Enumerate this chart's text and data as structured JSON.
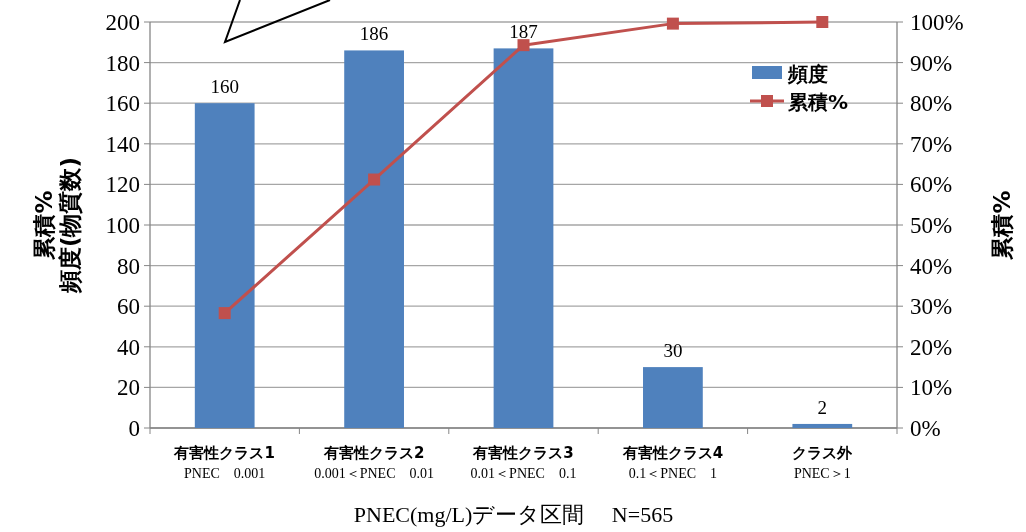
{
  "chart_data": {
    "type": "bar",
    "categories": [
      "有害性クラス1\nPNEC　0.001",
      "有害性クラス2\n0.001＜PNEC　0.01",
      "有害性クラス3\n0.01＜PNEC　0.1",
      "有害性クラス4\n0.1＜PNEC　1",
      "クラス外\nPNEC＞1"
    ],
    "series": [
      {
        "name": "頻度",
        "color": "#4f81bd",
        "values": [
          160,
          186,
          187,
          30,
          2
        ],
        "value_labels": [
          "160",
          "186",
          "187",
          "30",
          "2"
        ]
      },
      {
        "name": "累積%",
        "type": "line",
        "axis": "y2",
        "color": "#c0504d",
        "marker": "square",
        "values": [
          28.3,
          61.2,
          94.3,
          99.6,
          100
        ]
      }
    ],
    "ylabel": "累積%\n頻度(物質数)",
    "y2label": "累積%",
    "xlabel": "PNEC(mg/L)データ区間　 N=565",
    "ylim": [
      0,
      200
    ],
    "yticks": [
      0,
      20,
      40,
      60,
      80,
      100,
      120,
      140,
      160,
      180,
      200
    ],
    "y2lim": [
      0,
      100
    ],
    "y2ticks": [
      {
        "value": 0,
        "label": "0%"
      },
      {
        "value": 10,
        "label": "10%"
      },
      {
        "value": 20,
        "label": "20%"
      },
      {
        "value": 30,
        "label": "30%"
      },
      {
        "value": 40,
        "label": "40%"
      },
      {
        "value": 50,
        "label": "50%"
      },
      {
        "value": 60,
        "label": "60%"
      },
      {
        "value": 70,
        "label": "70%"
      },
      {
        "value": 80,
        "label": "80%"
      },
      {
        "value": 90,
        "label": "90%"
      },
      {
        "value": 100,
        "label": "100%"
      }
    ],
    "grid": "y",
    "legend": "top right"
  }
}
